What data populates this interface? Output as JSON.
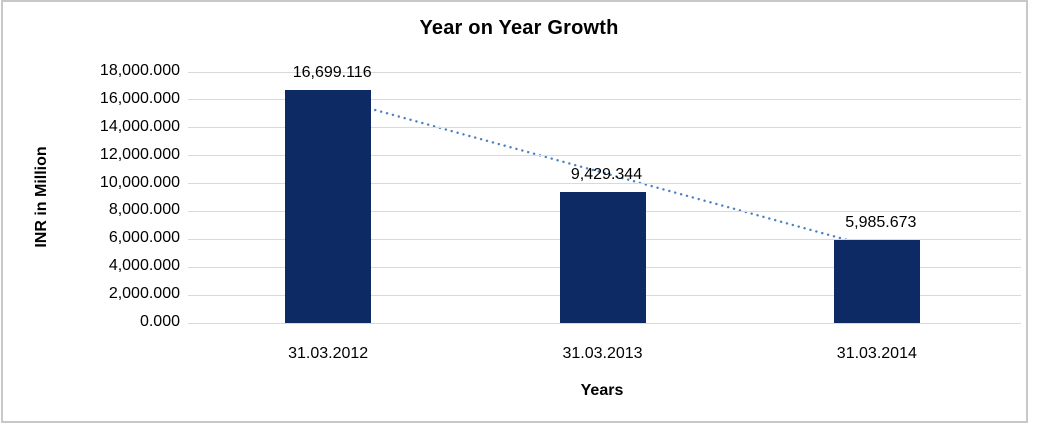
{
  "window": {
    "background_color": "#FFFFFF",
    "border_color": "#C8C8C8"
  },
  "chart_data": {
    "type": "bar",
    "title": "Year on Year Growth",
    "xlabel": "Years",
    "ylabel": "INR in Million",
    "categories": [
      "31.03.2012",
      "31.03.2013",
      "31.03.2014"
    ],
    "series": [
      {
        "name": "INR in Million",
        "values": [
          16699.116,
          9429.344,
          5985.673
        ]
      }
    ],
    "value_labels": [
      "16,699.116",
      "9,429.344",
      "5,985.673"
    ],
    "ylim": [
      0,
      18000
    ],
    "ytick_step": 2000,
    "ytick_labels": [
      "18,000.000",
      "16,000.000",
      "14,000.000",
      "12,000.000",
      "10,000.000",
      "8,000.000",
      "6,000.000",
      "4,000.000",
      "2,000.000",
      "0.000"
    ],
    "grid": true,
    "legend": "none",
    "bar_color": "#0D2A64",
    "gridline_color": "#D9D9D9",
    "text_color": "#000000",
    "trendline": {
      "type": "linear",
      "style": "dotted",
      "color": "#4E80C4",
      "points": [
        {
          "category_index": 0,
          "value": 16200
        },
        {
          "category_index": 2,
          "value": 5450
        }
      ]
    }
  }
}
